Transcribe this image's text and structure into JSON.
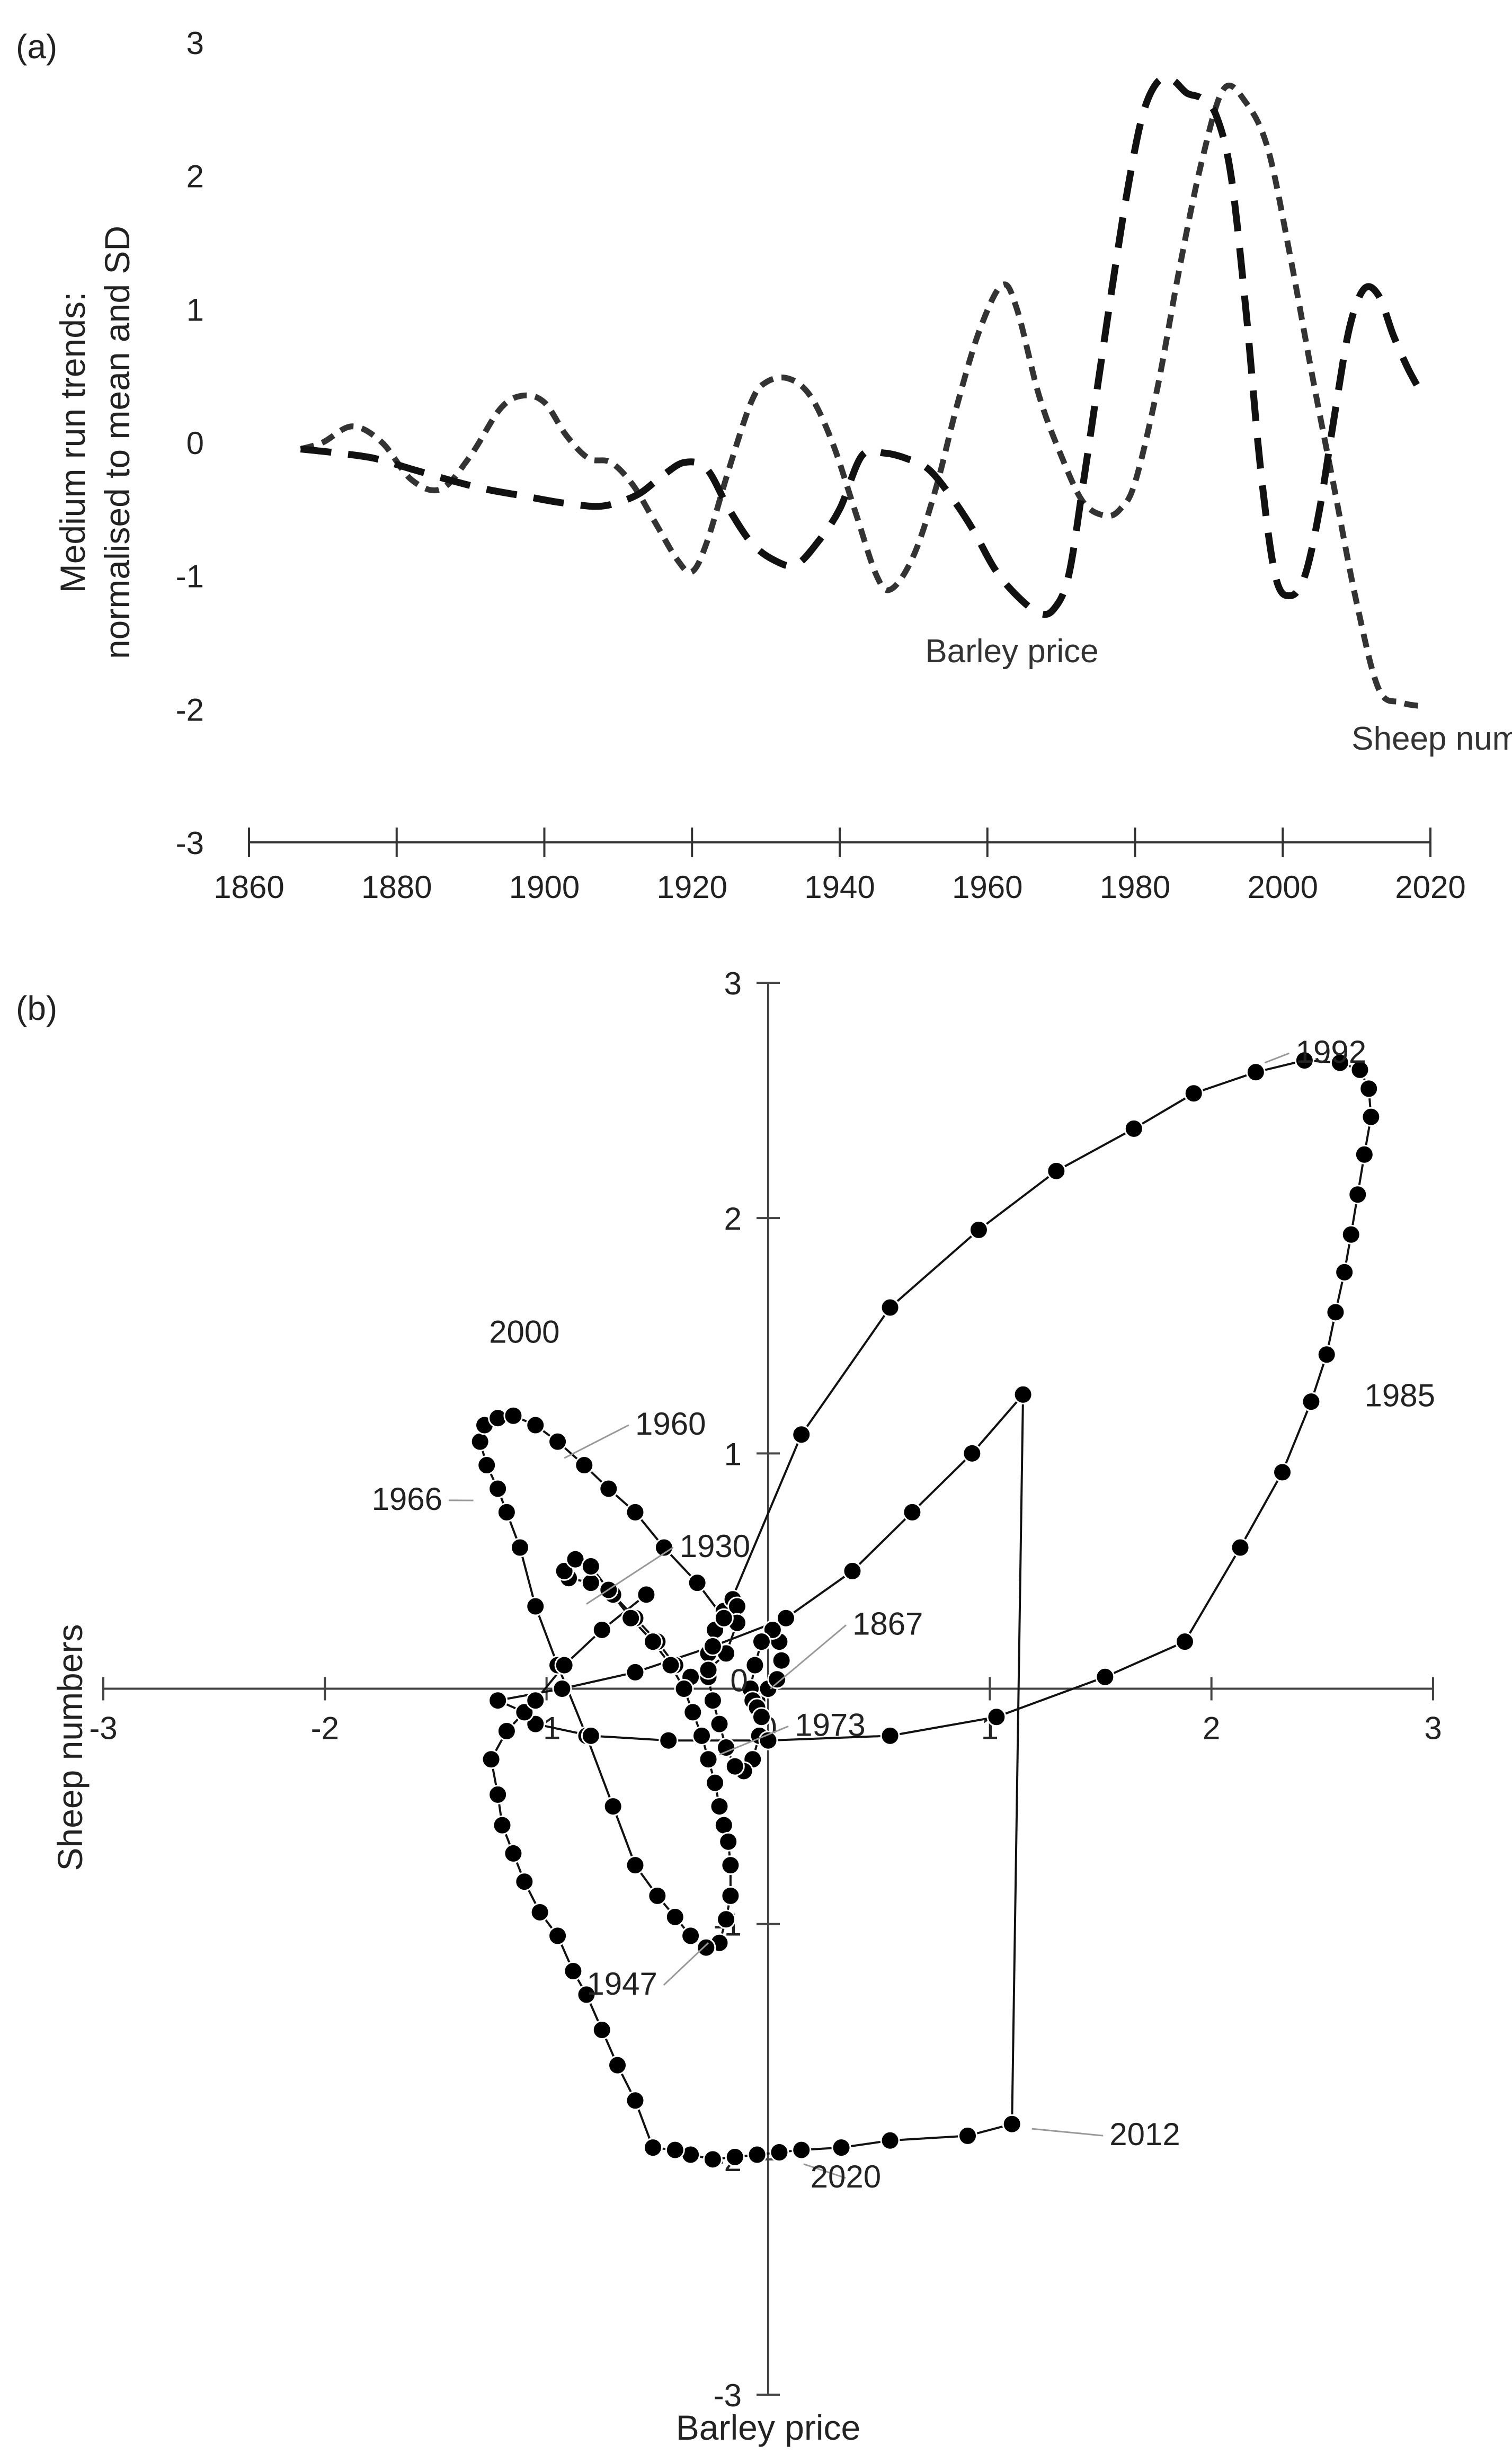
{
  "chart_data": [
    {
      "panel": "(a)",
      "type": "line",
      "ylabel": "Medium run trends: normalised to mean and SD",
      "xlabel": "",
      "xlim": [
        1860,
        2020
      ],
      "ylim": [
        -3,
        3
      ],
      "xticks": [
        "1860",
        "1880",
        "1900",
        "1920",
        "1940",
        "1960",
        "1980",
        "2000",
        "2020"
      ],
      "yticks": [
        "3",
        "2",
        "1",
        "0",
        "-1",
        "-2",
        "-3"
      ],
      "series": [
        {
          "name": "Barley price",
          "style": "short-dash",
          "color": "#333333",
          "x": [
            1867,
            1870,
            1874,
            1878,
            1882,
            1886,
            1890,
            1894,
            1897,
            1900,
            1903,
            1906,
            1909,
            1912,
            1915,
            1918,
            1920,
            1922,
            1925,
            1928,
            1930,
            1933,
            1936,
            1939,
            1942,
            1945,
            1947,
            1950,
            1953,
            1956,
            1959,
            1962,
            1964,
            1967,
            1970,
            1973,
            1976,
            1978,
            1980,
            1983,
            1986,
            1989,
            1992,
            1995,
            1998,
            2001,
            2004,
            2007,
            2010,
            2013,
            2016,
            2019
          ],
          "y": [
            -0.05,
            0.0,
            0.12,
            0.0,
            -0.28,
            -0.35,
            -0.1,
            0.25,
            0.35,
            0.3,
            0.05,
            -0.12,
            -0.15,
            -0.32,
            -0.6,
            -0.88,
            -0.97,
            -0.75,
            -0.2,
            0.3,
            0.45,
            0.48,
            0.35,
            0.0,
            -0.5,
            -1.0,
            -1.1,
            -0.85,
            -0.35,
            0.3,
            0.85,
            1.18,
            1.0,
            0.35,
            -0.1,
            -0.45,
            -0.55,
            -0.5,
            -0.3,
            0.4,
            1.3,
            2.1,
            2.65,
            2.55,
            2.2,
            1.4,
            0.5,
            -0.35,
            -1.2,
            -1.85,
            -1.95,
            -1.98
          ]
        },
        {
          "name": "Sheep numbers",
          "style": "long-dash",
          "color": "#111111",
          "x": [
            1867,
            1872,
            1877,
            1882,
            1887,
            1892,
            1897,
            1902,
            1907,
            1910,
            1913,
            1916,
            1919,
            1922,
            1925,
            1928,
            1931,
            1934,
            1937,
            1940,
            1943,
            1946,
            1949,
            1952,
            1955,
            1958,
            1961,
            1964,
            1967,
            1969,
            1971,
            1973,
            1975,
            1977,
            1979,
            1981,
            1983,
            1985,
            1987,
            1989,
            1991,
            1993,
            1995,
            1997,
            1999,
            2001,
            2003,
            2005,
            2007,
            2009,
            2011,
            2013,
            2015,
            2017,
            2019
          ],
          "y": [
            -0.05,
            -0.08,
            -0.12,
            -0.2,
            -0.28,
            -0.35,
            -0.4,
            -0.45,
            -0.48,
            -0.45,
            -0.38,
            -0.25,
            -0.15,
            -0.2,
            -0.5,
            -0.75,
            -0.88,
            -0.92,
            -0.75,
            -0.5,
            -0.1,
            -0.08,
            -0.12,
            -0.2,
            -0.4,
            -0.65,
            -0.95,
            -1.15,
            -1.28,
            -1.25,
            -1.0,
            -0.3,
            0.45,
            1.2,
            1.9,
            2.45,
            2.7,
            2.72,
            2.62,
            2.58,
            2.45,
            2.0,
            1.0,
            -0.2,
            -1.0,
            -1.15,
            -1.0,
            -0.5,
            0.2,
            0.85,
            1.15,
            1.1,
            0.8,
            0.55,
            0.35
          ]
        }
      ],
      "annotations": [
        "Barley price",
        "Sheep numbers"
      ]
    },
    {
      "panel": "(b)",
      "type": "scatter",
      "connected": true,
      "xlabel": "Barley price",
      "ylabel": "Sheep numbers",
      "xlim": [
        -3,
        3
      ],
      "ylim": [
        -3,
        3
      ],
      "xticks": [
        "-3",
        "-2",
        "-1",
        "0",
        "1",
        "2",
        "3"
      ],
      "yticks": [
        "3",
        "2",
        "1",
        "0",
        "-1",
        "-2",
        "-3"
      ],
      "points_x": [
        -0.05,
        0.0,
        0.04,
        0.06,
        0.05,
        0.02,
        -0.03,
        -0.06,
        -0.08,
        -0.07,
        -0.05,
        -0.03,
        -0.04,
        -0.07,
        -0.11,
        -0.15,
        -0.19,
        -0.22,
        -0.25,
        -0.27,
        -0.27,
        -0.24,
        -0.2,
        -0.16,
        -0.14,
        -0.14,
        -0.19,
        -0.27,
        -0.35,
        -0.42,
        -0.5,
        -0.6,
        -0.7,
        -0.8,
        -0.9,
        -0.92,
        -0.87,
        -0.8,
        -0.72,
        -0.62,
        -0.52,
        -0.44,
        -0.38,
        -0.34,
        -0.3,
        -0.27,
        -0.24,
        -0.22,
        -0.2,
        -0.18,
        -0.17,
        -0.17,
        -0.19,
        -0.22,
        -0.28,
        -0.35,
        -0.42,
        -0.5,
        -0.6,
        -0.7,
        -0.82,
        -0.95,
        -1.05,
        -1.12,
        -1.18,
        -1.22,
        -1.27,
        -1.3,
        -1.28,
        -1.22,
        -1.15,
        -1.05,
        -0.95,
        -0.83,
        -0.72,
        -0.6,
        -0.47,
        -0.32,
        -0.2,
        0.15,
        0.55,
        0.95,
        1.3,
        1.65,
        1.92,
        2.2,
        2.42,
        2.58,
        2.67,
        2.71,
        2.72,
        2.69,
        2.66,
        2.63,
        2.6,
        2.56,
        2.52,
        2.45,
        2.32,
        2.13,
        1.88,
        1.52,
        1.03,
        0.55,
        0.0,
        -0.45,
        -0.8,
        -1.05,
        -1.1,
        -1.22,
        -0.93,
        -0.6,
        -0.25,
        0.08,
        0.38,
        0.65,
        0.92,
        1.15,
        1.1,
        0.9,
        0.55,
        0.33,
        0.15,
        0.05,
        -0.05,
        -0.15,
        -0.25,
        -0.35,
        -0.42,
        -0.52,
        -0.6,
        -0.68,
        -0.75,
        -0.82,
        -0.88,
        -0.95,
        -1.03,
        -1.1,
        -1.15,
        -1.2,
        -1.22,
        -1.25,
        -1.18,
        -1.05,
        -0.92,
        -0.75,
        -0.55
      ],
      "points_y": [
        -0.05,
        0.0,
        0.04,
        0.12,
        0.2,
        0.25,
        0.2,
        0.1,
        0.0,
        -0.05,
        -0.08,
        -0.12,
        -0.2,
        -0.3,
        -0.35,
        -0.33,
        -0.25,
        -0.15,
        -0.05,
        0.05,
        0.15,
        0.25,
        0.33,
        0.38,
        0.35,
        0.28,
        0.15,
        0.08,
        0.05,
        0.1,
        0.2,
        0.3,
        0.4,
        0.45,
        0.47,
        0.5,
        0.55,
        0.52,
        0.42,
        0.3,
        0.2,
        0.1,
        0.0,
        -0.1,
        -0.2,
        -0.3,
        -0.4,
        -0.5,
        -0.58,
        -0.65,
        -0.75,
        -0.88,
        -0.98,
        -1.08,
        -1.1,
        -1.05,
        -0.97,
        -0.88,
        -0.75,
        -0.5,
        -0.2,
        0.1,
        0.35,
        0.6,
        0.75,
        0.85,
        0.95,
        1.05,
        1.12,
        1.15,
        1.16,
        1.12,
        1.05,
        0.95,
        0.85,
        0.75,
        0.6,
        0.45,
        0.3,
        1.08,
        1.62,
        1.95,
        2.2,
        2.38,
        2.53,
        2.62,
        2.67,
        2.66,
        2.63,
        2.55,
        2.43,
        2.27,
        2.1,
        1.93,
        1.77,
        1.6,
        1.42,
        1.22,
        0.92,
        0.6,
        0.2,
        0.05,
        -0.12,
        -0.2,
        -0.22,
        -0.22,
        -0.2,
        -0.15,
        -0.1,
        -0.05,
        0.0,
        0.07,
        0.18,
        0.3,
        0.5,
        0.75,
        1.0,
        1.25,
        -1.85,
        -1.9,
        -1.92,
        -1.95,
        -1.96,
        -1.97,
        -1.98,
        -1.99,
        -2.0,
        -1.98,
        -1.96,
        -1.95,
        -1.75,
        -1.6,
        -1.45,
        -1.3,
        -1.2,
        -1.05,
        -0.95,
        -0.82,
        -0.7,
        -0.58,
        -0.45,
        -0.3,
        -0.18,
        -0.05,
        0.1,
        0.25,
        0.4,
        0.55,
        0.7
      ],
      "year_labels": [
        "1992",
        "1985",
        "2000",
        "1960",
        "1966",
        "1930",
        "1867",
        "1973",
        "1947",
        "2012",
        "2020"
      ]
    }
  ],
  "colors": {
    "line": "#111111",
    "marker": "#000000",
    "axis": "#333333",
    "leader": "#999999"
  }
}
